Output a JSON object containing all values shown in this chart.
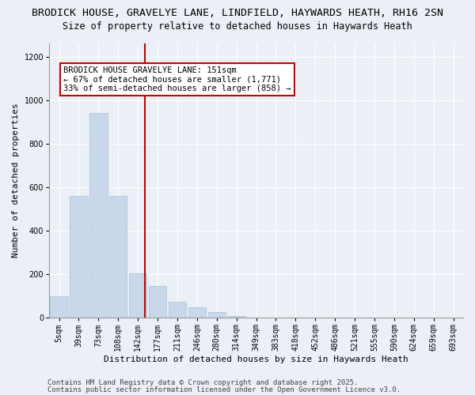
{
  "title_line1": "BRODICK HOUSE, GRAVELYE LANE, LINDFIELD, HAYWARDS HEATH, RH16 2SN",
  "title_line2": "Size of property relative to detached houses in Haywards Heath",
  "xlabel": "Distribution of detached houses by size in Haywards Heath",
  "ylabel": "Number of detached properties",
  "annotation_line1": "BRODICK HOUSE GRAVELYE LANE: 151sqm",
  "annotation_line2": "← 67% of detached houses are smaller (1,771)",
  "annotation_line3": "33% of semi-detached houses are larger (858) →",
  "footer_line1": "Contains HM Land Registry data © Crown copyright and database right 2025.",
  "footer_line2": "Contains public sector information licensed under the Open Government Licence v3.0.",
  "bar_categories": [
    "5sqm",
    "39sqm",
    "73sqm",
    "108sqm",
    "142sqm",
    "177sqm",
    "211sqm",
    "246sqm",
    "280sqm",
    "314sqm",
    "349sqm",
    "383sqm",
    "418sqm",
    "452sqm",
    "486sqm",
    "521sqm",
    "555sqm",
    "590sqm",
    "624sqm",
    "659sqm",
    "693sqm"
  ],
  "bar_heights": [
    100,
    560,
    940,
    560,
    205,
    145,
    75,
    48,
    28,
    8,
    0,
    0,
    0,
    0,
    0,
    0,
    0,
    0,
    0,
    0,
    0
  ],
  "bar_color": "#c8d8ea",
  "bar_edgecolor": "#a8c0d8",
  "vline_x_index": 4.35,
  "vline_color": "#cc0000",
  "ylim": [
    0,
    1260
  ],
  "yticks": [
    0,
    200,
    400,
    600,
    800,
    1000,
    1200
  ],
  "background_color": "#eaf0f6",
  "plot_bg_color": "#eaf0f6",
  "annotation_box_facecolor": "#ffffff",
  "annotation_box_edgecolor": "#cc0000",
  "title_fontsize": 9.5,
  "subtitle_fontsize": 8.5,
  "ylabel_fontsize": 8,
  "xlabel_fontsize": 8,
  "tick_fontsize": 7,
  "annotation_fontsize": 7.5,
  "footer_fontsize": 6.5
}
